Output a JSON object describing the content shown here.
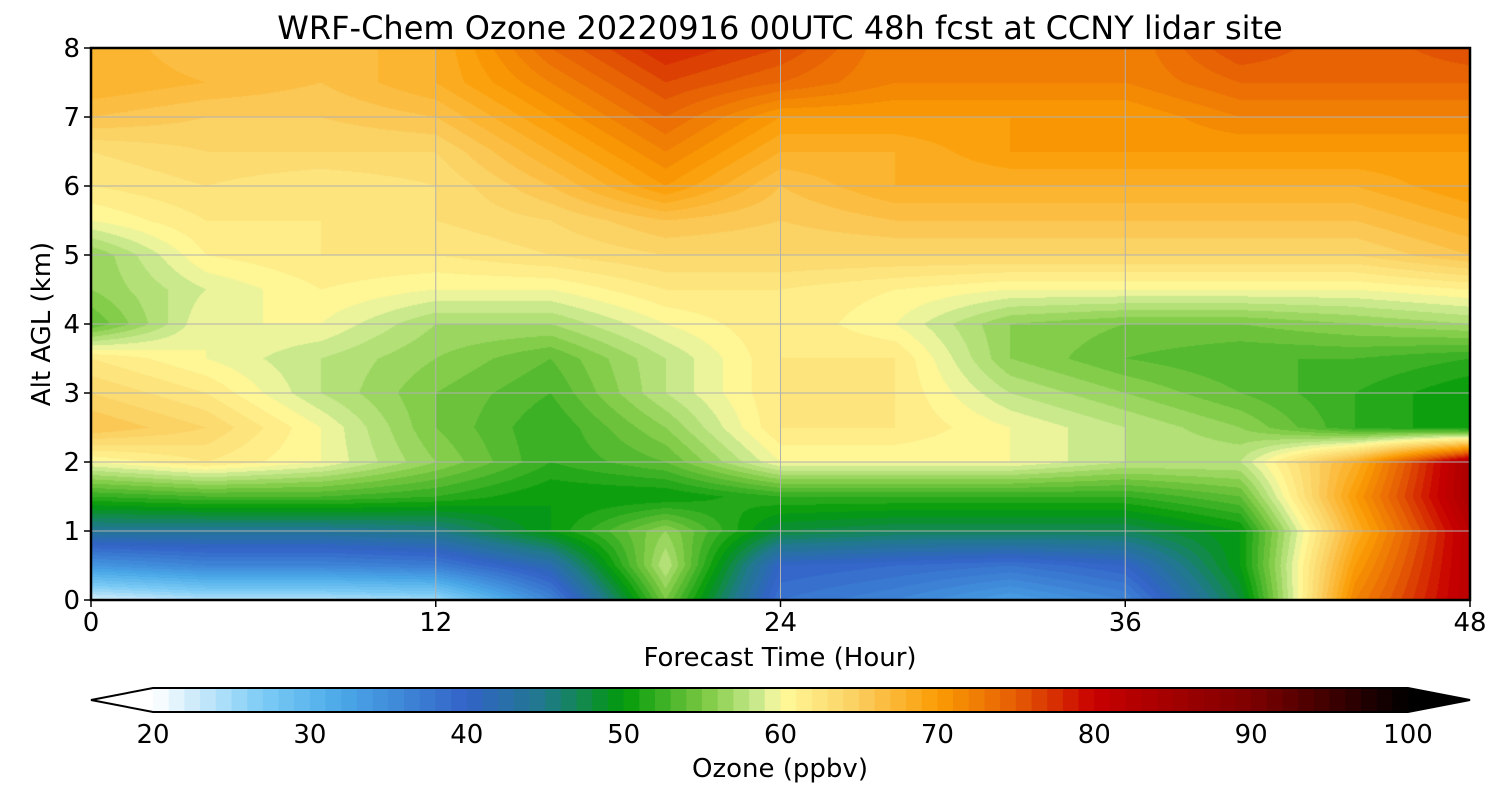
{
  "chart_data": {
    "type": "heatmap",
    "title": "WRF-Chem Ozone  20220916 00UTC 48h fcst at CCNY lidar site",
    "xlabel": "Forecast Time (Hour)",
    "ylabel": "Alt AGL (km)",
    "xlim": [
      0,
      48
    ],
    "ylim": [
      0,
      8
    ],
    "x_ticks": [
      "0",
      "12",
      "24",
      "36",
      "48"
    ],
    "y_ticks": [
      "0",
      "1",
      "2",
      "3",
      "4",
      "5",
      "6",
      "7",
      "8"
    ],
    "grid": true,
    "x_hours": [
      0,
      4,
      8,
      12,
      16,
      20,
      24,
      28,
      32,
      36,
      40,
      44,
      48
    ],
    "y_km": [
      0,
      0.5,
      1,
      1.5,
      2,
      2.5,
      3,
      3.5,
      4,
      4.5,
      5,
      5.5,
      6,
      6.5,
      7,
      7.5,
      8
    ],
    "z_ozone_ppbv": [
      [
        22,
        24,
        24,
        25,
        36,
        55,
        38,
        36,
        33,
        36,
        48,
        72,
        82
      ],
      [
        34,
        36,
        36,
        37,
        42,
        58,
        40,
        39,
        38,
        40,
        50,
        70,
        82
      ],
      [
        44,
        44,
        44,
        45,
        50,
        56,
        48,
        47,
        47,
        47,
        50,
        68,
        82
      ],
      [
        52,
        53,
        53,
        52,
        50,
        50,
        52,
        52,
        52,
        52,
        54,
        70,
        84
      ],
      [
        60,
        62,
        60,
        56,
        52,
        54,
        60,
        60,
        60,
        58,
        58,
        68,
        84
      ],
      [
        66,
        64,
        60,
        55,
        52,
        56,
        62,
        62,
        60,
        58,
        56,
        52,
        50
      ],
      [
        64,
        62,
        58,
        55,
        53,
        58,
        62,
        62,
        58,
        56,
        54,
        52,
        50
      ],
      [
        62,
        60,
        58,
        56,
        54,
        58,
        62,
        62,
        56,
        54,
        53,
        53,
        52
      ],
      [
        54,
        60,
        60,
        57,
        57,
        60,
        62,
        60,
        56,
        55,
        55,
        56,
        57
      ],
      [
        56,
        59,
        61,
        60,
        60,
        62,
        62,
        61,
        60,
        60,
        60,
        60,
        61
      ],
      [
        56,
        61,
        62,
        62,
        63,
        64,
        64,
        64,
        64,
        64,
        64,
        64,
        66
      ],
      [
        60,
        62,
        62,
        63,
        64,
        66,
        65,
        66,
        66,
        66,
        66,
        66,
        68
      ],
      [
        62,
        63,
        62,
        63,
        66,
        70,
        66,
        68,
        68,
        68,
        68,
        68,
        70
      ],
      [
        63,
        64,
        64,
        64,
        68,
        72,
        68,
        68,
        70,
        70,
        70,
        70,
        70
      ],
      [
        66,
        65,
        65,
        66,
        70,
        74,
        70,
        70,
        70,
        70,
        72,
        72,
        72
      ],
      [
        68,
        67,
        66,
        68,
        72,
        76,
        74,
        72,
        72,
        72,
        74,
        74,
        74
      ],
      [
        68,
        66,
        66,
        68,
        74,
        78,
        76,
        72,
        72,
        72,
        76,
        74,
        76
      ]
    ],
    "colorbar": {
      "label": "Ozone  (ppbv)",
      "min": 20,
      "max": 100,
      "step": 1,
      "extend": "both",
      "ticks": [
        "20",
        "30",
        "40",
        "50",
        "60",
        "70",
        "80",
        "90",
        "100"
      ],
      "color_stops": [
        [
          20,
          "#ffffff"
        ],
        [
          27,
          "#7ccbf5"
        ],
        [
          32,
          "#4aa8e8"
        ],
        [
          40,
          "#3263c7"
        ],
        [
          45,
          "#1f7a8a"
        ],
        [
          50,
          "#029a0a"
        ],
        [
          55,
          "#78c840"
        ],
        [
          59,
          "#d6ee98"
        ],
        [
          60,
          "#fffa9c"
        ],
        [
          65,
          "#fbcd5e"
        ],
        [
          70,
          "#fb9c04"
        ],
        [
          75,
          "#e55d04"
        ],
        [
          80,
          "#c80000"
        ],
        [
          90,
          "#7d0000"
        ],
        [
          100,
          "#000000"
        ]
      ]
    }
  }
}
